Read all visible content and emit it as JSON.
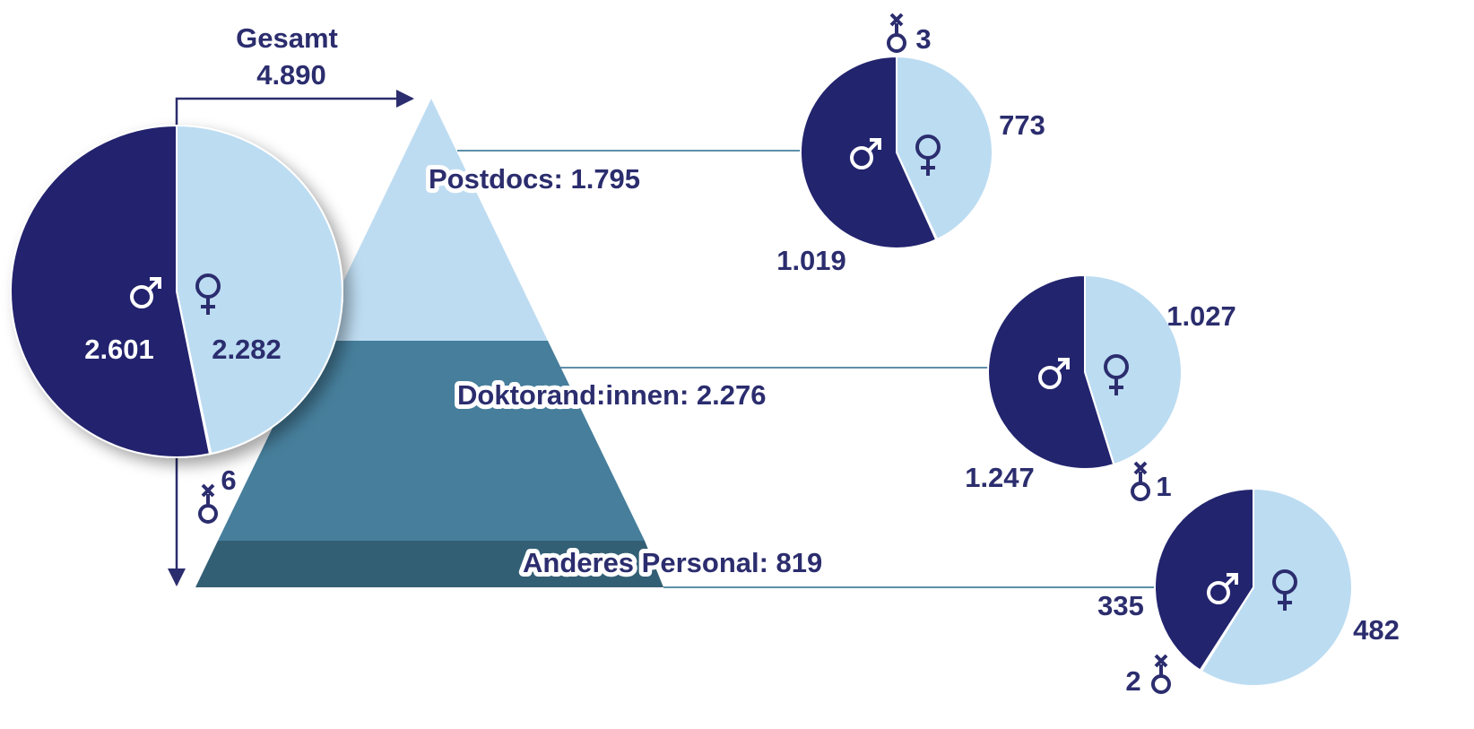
{
  "chart_data": [
    {
      "type": "pie",
      "title": "Gesamt",
      "subtitle": "4.890",
      "values": [
        2601,
        2282,
        6
      ],
      "value_labels": [
        "2.601",
        "2.282",
        "6"
      ],
      "colors": [
        "#22246e",
        "#bcdcf2",
        "#22246e"
      ]
    },
    {
      "type": "pie",
      "title": "Postdocs: 1.795",
      "values": [
        1019,
        773,
        3
      ],
      "value_labels": [
        "1.019",
        "773",
        "3"
      ],
      "colors": [
        "#22246e",
        "#bcdcf2",
        "#22246e"
      ]
    },
    {
      "type": "pie",
      "title": "Doktorand:innen: 2.276",
      "values": [
        1247,
        1027,
        1
      ],
      "value_labels": [
        "1.247",
        "1.027",
        "1"
      ],
      "colors": [
        "#22246e",
        "#bcdcf2",
        "#22246e"
      ]
    },
    {
      "type": "pie",
      "title": "Anderes Personal: 819",
      "values": [
        335,
        482,
        2
      ],
      "value_labels": [
        "335",
        "482",
        "2"
      ],
      "colors": [
        "#22246e",
        "#bcdcf2",
        "#22246e"
      ]
    }
  ]
}
